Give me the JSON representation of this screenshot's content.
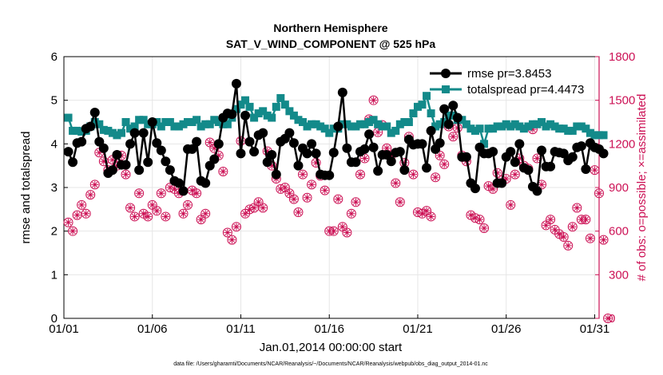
{
  "chart_data": {
    "type": "line",
    "title": "Northern Hemisphere",
    "subtitle": "SAT_V_WIND_COMPONENT @ 525 hPa",
    "xlabel": "Jan.01,2014 00:00:00 start",
    "ylabel": "rmse and totalspread",
    "y2label": "# of obs: o=possible; ×=assimilated",
    "xlim": [
      1,
      31.25
    ],
    "ylim": [
      0,
      6
    ],
    "y2lim": [
      0,
      1800
    ],
    "x_ticks": [
      1,
      6,
      11,
      16,
      21,
      26,
      31
    ],
    "x_tick_labels": [
      "01/01",
      "01/06",
      "01/11",
      "01/16",
      "01/21",
      "01/26",
      "01/31"
    ],
    "y_ticks": [
      "0",
      "1",
      "2",
      "3",
      "4",
      "5",
      "6"
    ],
    "y2_ticks": [
      "0",
      "300",
      "600",
      "900",
      "1200",
      "1500",
      "1800"
    ],
    "grid": true,
    "legend_position": "top-right",
    "colors": {
      "rmse": "#000000",
      "spread": "#138a8a",
      "obs": "#cc1155"
    },
    "series": [
      {
        "name": "rmse pr=3.8453",
        "marker": "circle",
        "values": [
          3.82,
          3.58,
          4.02,
          4.05,
          4.35,
          4.4,
          4.72,
          4.05,
          3.9,
          3.33,
          3.4,
          3.75,
          3.52,
          3.52,
          4.0,
          4.25,
          3.4,
          4.25,
          3.58,
          4.5,
          4.02,
          3.85,
          3.6,
          3.4,
          3.15,
          3.1,
          2.92,
          3.88,
          3.88,
          4.05,
          3.15,
          3.1,
          3.5,
          3.65,
          4.0,
          4.6,
          4.7,
          4.68,
          5.38,
          3.78,
          4.65,
          4.05,
          3.82,
          4.2,
          4.25,
          3.58,
          3.75,
          3.3,
          4.05,
          4.12,
          4.25,
          4.02,
          3.5,
          3.9,
          3.78,
          4.0,
          3.78,
          3.3,
          3.28,
          3.28,
          3.8,
          4.4,
          5.18,
          3.9,
          3.58,
          3.58,
          3.82,
          3.88,
          4.22,
          3.92,
          3.38,
          3.75,
          3.75,
          3.6,
          3.8,
          3.82,
          3.4,
          4.1,
          3.98,
          4.0,
          4.0,
          3.45,
          4.3,
          3.88,
          4.02,
          4.8,
          4.45,
          4.88,
          4.6,
          3.7,
          3.7,
          3.1,
          2.98,
          3.92,
          3.78,
          3.78,
          3.82,
          3.1,
          3.1,
          3.7,
          3.82,
          3.58,
          4.0,
          3.45,
          3.4,
          3.02,
          2.92,
          3.85,
          3.48,
          3.48,
          3.82,
          3.8,
          3.78,
          3.62,
          3.7,
          3.92,
          3.95,
          3.42,
          4.02,
          3.92,
          3.88,
          3.78
        ]
      },
      {
        "name": "totalspread pr=4.4473",
        "marker": "square",
        "values": [
          4.6,
          4.3,
          4.3,
          4.28,
          4.3,
          4.4,
          4.5,
          4.45,
          4.32,
          4.3,
          4.25,
          4.2,
          4.25,
          4.5,
          4.35,
          4.4,
          4.55,
          4.55,
          4.45,
          4.45,
          4.5,
          4.4,
          4.5,
          4.5,
          4.4,
          4.4,
          4.45,
          4.5,
          4.5,
          4.55,
          4.4,
          4.45,
          4.45,
          4.55,
          4.5,
          4.45,
          4.45,
          4.6,
          4.8,
          4.9,
          5.0,
          4.85,
          4.6,
          4.7,
          4.75,
          4.65,
          4.6,
          4.85,
          5.05,
          4.9,
          4.75,
          4.65,
          4.55,
          4.5,
          4.4,
          4.45,
          4.45,
          4.4,
          4.35,
          4.25,
          4.35,
          4.35,
          4.45,
          4.45,
          4.4,
          4.4,
          4.45,
          4.45,
          4.5,
          4.55,
          4.45,
          4.4,
          4.4,
          4.25,
          4.3,
          4.45,
          4.5,
          4.5,
          4.7,
          4.85,
          4.9,
          5.1,
          4.7,
          4.4,
          4.45,
          4.5,
          4.65,
          4.65,
          4.55,
          4.55,
          4.45,
          4.35,
          4.3,
          4.35,
          4.0,
          4.35,
          4.35,
          4.4,
          4.4,
          4.45,
          4.4,
          4.45,
          4.4,
          4.35,
          4.4,
          4.45,
          4.45,
          4.5,
          4.4,
          4.45,
          4.4,
          4.35,
          4.35,
          4.3,
          4.3,
          4.4,
          4.4,
          4.35,
          4.25,
          4.2,
          4.2,
          4.2
        ]
      },
      {
        "name": "obs possible",
        "marker": "circle-open",
        "axis": "right",
        "values": [
          660,
          600,
          710,
          780,
          720,
          850,
          920,
          1140,
          1080,
          1020,
          1090,
          1050,
          1120,
          990,
          760,
          700,
          860,
          720,
          700,
          780,
          740,
          860,
          700,
          900,
          890,
          860,
          720,
          780,
          880,
          860,
          680,
          720,
          1210,
          1170,
          1120,
          1010,
          590,
          540,
          630,
          1220,
          720,
          750,
          760,
          800,
          760,
          1150,
          1050,
          960,
          890,
          900,
          860,
          820,
          730,
          990,
          830,
          920,
          1070,
          980,
          880,
          600,
          600,
          820,
          630,
          590,
          720,
          800,
          990,
          1100,
          1370,
          1500,
          1280,
          1330,
          1170,
          1120,
          930,
          800,
          1070,
          1250,
          990,
          730,
          720,
          740,
          700,
          970,
          1120,
          1060,
          1320,
          1250,
          1310,
          1120,
          1080,
          710,
          690,
          680,
          620,
          910,
          890,
          1000,
          950,
          960,
          780,
          990,
          1100,
          1050,
          1030,
          1300,
          1100,
          920,
          640,
          680,
          610,
          580,
          560,
          500,
          630,
          760,
          680,
          680,
          550,
          1020,
          860,
          540,
          0
        ]
      },
      {
        "name": "obs assimilated",
        "marker": "star",
        "axis": "right",
        "values": [
          660,
          600,
          710,
          780,
          720,
          850,
          920,
          1140,
          1080,
          1020,
          1090,
          1050,
          1120,
          990,
          760,
          700,
          860,
          720,
          700,
          780,
          740,
          860,
          700,
          900,
          890,
          860,
          720,
          780,
          880,
          860,
          680,
          720,
          1210,
          1170,
          1120,
          1010,
          590,
          540,
          630,
          1220,
          720,
          750,
          760,
          800,
          760,
          1150,
          1050,
          960,
          890,
          900,
          860,
          820,
          730,
          990,
          830,
          920,
          1070,
          980,
          880,
          600,
          600,
          820,
          630,
          590,
          720,
          800,
          990,
          1100,
          1370,
          1500,
          1280,
          1330,
          1170,
          1120,
          930,
          800,
          1070,
          1250,
          990,
          730,
          720,
          740,
          700,
          970,
          1120,
          1060,
          1320,
          1250,
          1310,
          1120,
          1080,
          710,
          690,
          680,
          620,
          910,
          890,
          1000,
          950,
          960,
          780,
          990,
          1100,
          1050,
          1030,
          1300,
          1100,
          920,
          640,
          680,
          610,
          580,
          560,
          500,
          630,
          760,
          680,
          680,
          550,
          1020,
          860,
          540,
          0
        ]
      }
    ]
  },
  "footnote": "data file: /Users/gharamti/Documents/NCAR/Reanalysis/~/Documents/NCAR/Reanalysis/webpub/obs_diag_output_2014-01.nc"
}
